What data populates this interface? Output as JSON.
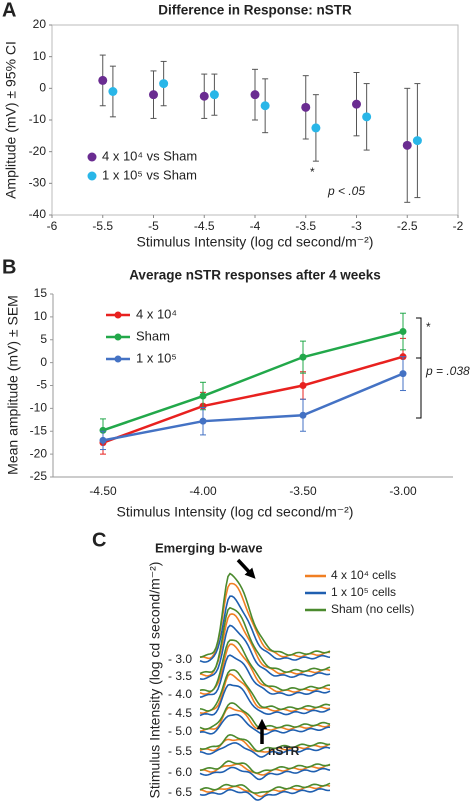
{
  "chart_data": [
    {
      "type": "scatter",
      "panel_label": "A",
      "title": "Difference in Response: nSTR",
      "xlabel": "Stimulus Intensity (log cd second/m⁻²)",
      "ylabel": "Amplitude (mV) ± 95% CI",
      "xlim": [
        -6,
        -2
      ],
      "xticks": [
        -6,
        -5.5,
        -5,
        -4.5,
        -4,
        -3.5,
        -3,
        -2.5,
        -2
      ],
      "ylim": [
        -40,
        20
      ],
      "yticks": [
        20,
        10,
        0,
        -10,
        -20,
        -30,
        -40
      ],
      "grid": false,
      "legend": "lower left",
      "series": [
        {
          "name": "4 x 10⁴ vs Sham",
          "color": "#6a2c91",
          "x": [
            -5.5,
            -5,
            -4.5,
            -4,
            -3.5,
            -3,
            -2.5
          ],
          "values": [
            2.5,
            -2,
            -2.5,
            -2,
            -6,
            -5,
            -18
          ],
          "errors": [
            8,
            7.5,
            7,
            8,
            10,
            10,
            18
          ]
        },
        {
          "name": "1 x 10⁵ vs Sham",
          "color": "#29b6e8",
          "x": [
            -5.4,
            -4.9,
            -4.4,
            -3.9,
            -3.4,
            -2.9,
            -2.4
          ],
          "values": [
            -1,
            1.5,
            -2,
            -5.5,
            -12.5,
            -9,
            -16.5
          ],
          "errors": [
            8,
            7,
            6.5,
            8.5,
            10.5,
            10.5,
            18
          ]
        }
      ],
      "annotations": [
        "*",
        "p < .05"
      ]
    },
    {
      "type": "line",
      "panel_label": "B",
      "title": "Average nSTR responses after 4 weeks",
      "xlabel": "Stimulus Intensity (log cd second/m⁻²)",
      "ylabel": "Mean amplitude (mV) ± SEM",
      "categories": [
        "-4.50",
        "-4.00",
        "-3.50",
        "-3.00"
      ],
      "ylim": [
        -25,
        15
      ],
      "yticks": [
        15,
        10,
        5,
        0,
        -5,
        -10,
        -15,
        -20,
        -25
      ],
      "grid": false,
      "legend": "upper left",
      "series": [
        {
          "name": "4 x 10⁴",
          "color": "#e8211f",
          "values": [
            -17.5,
            -9.5,
            -5,
            1.3
          ],
          "errors": [
            2.5,
            3,
            3,
            4
          ]
        },
        {
          "name": "Sham",
          "color": "#22a84a",
          "values": [
            -14.8,
            -7.3,
            1.2,
            6.8
          ],
          "errors": [
            2.5,
            3,
            3.5,
            4
          ]
        },
        {
          "name": "1 x 10⁵",
          "color": "#4472c4",
          "values": [
            -17,
            -12.8,
            -11.5,
            -2.4
          ],
          "errors": [
            2,
            3,
            3.5,
            3.7
          ]
        }
      ],
      "annotations": [
        "*",
        "p = .038"
      ]
    },
    {
      "type": "traces",
      "panel_label": "C",
      "ylabel": "Stimulus Intensity (log cd second/m⁻²)",
      "rows": [
        "- 3.0",
        "- 3.5",
        "- 4.0",
        "- 4.5",
        "- 5.0",
        "- 5.5",
        "- 6.0",
        "- 6.5"
      ],
      "series": [
        {
          "name": "4 x 10⁴ cells",
          "color": "#f07f22"
        },
        {
          "name": "1 x 10⁵ cells",
          "color": "#1f5fb0"
        },
        {
          "name": "Sham (no cells)",
          "color": "#4b8a2e"
        }
      ],
      "annotations": [
        "Emerging b-wave",
        "nSTR"
      ]
    }
  ]
}
